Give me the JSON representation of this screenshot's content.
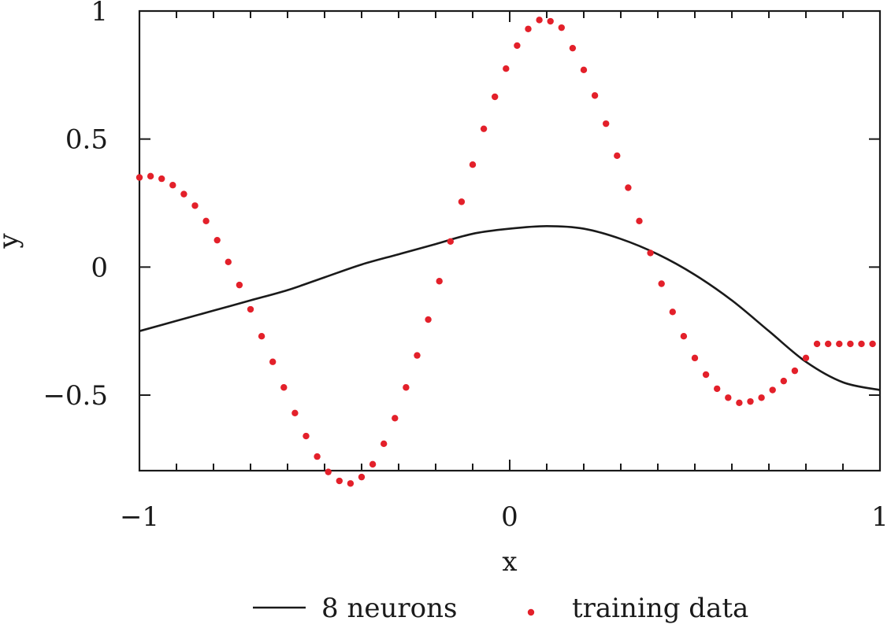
{
  "chart_data": {
    "type": "line",
    "xlabel": "x",
    "ylabel": "y",
    "xlim": [
      -1,
      1
    ],
    "ylim": [
      -0.9,
      1
    ],
    "xticks": [
      -1,
      0,
      1
    ],
    "xtick_labels": [
      "−1",
      "0",
      "1"
    ],
    "yticks": [
      -0.5,
      0,
      0.5,
      1
    ],
    "ytick_labels": [
      "−0.5",
      "0",
      "0.5",
      "1"
    ],
    "minor_xtick_step": 0.1,
    "grid": false,
    "legend_position": "bottom",
    "colors": {
      "model": "#1a1a1a",
      "training": "#e3202a"
    },
    "series": [
      {
        "name": "8 neurons",
        "kind": "line",
        "x": [
          -1.0,
          -0.9,
          -0.8,
          -0.7,
          -0.6,
          -0.5,
          -0.4,
          -0.3,
          -0.2,
          -0.1,
          0.0,
          0.1,
          0.2,
          0.3,
          0.4,
          0.5,
          0.6,
          0.7,
          0.8,
          0.9,
          1.0
        ],
        "y": [
          -0.25,
          -0.21,
          -0.17,
          -0.13,
          -0.09,
          -0.04,
          0.01,
          0.05,
          0.09,
          0.13,
          0.15,
          0.16,
          0.15,
          0.11,
          0.05,
          -0.03,
          -0.13,
          -0.25,
          -0.37,
          -0.45,
          -0.48
        ]
      },
      {
        "name": "training data",
        "kind": "scatter",
        "x": [
          -1.0,
          -0.97,
          -0.94,
          -0.91,
          -0.88,
          -0.85,
          -0.82,
          -0.79,
          -0.76,
          -0.73,
          -0.7,
          -0.67,
          -0.64,
          -0.61,
          -0.58,
          -0.55,
          -0.52,
          -0.49,
          -0.46,
          -0.43,
          -0.4,
          -0.37,
          -0.34,
          -0.31,
          -0.28,
          -0.25,
          -0.22,
          -0.19,
          -0.16,
          -0.13,
          -0.1,
          -0.07,
          -0.04,
          -0.01,
          0.02,
          0.05,
          0.08,
          0.11,
          0.14,
          0.17,
          0.2,
          0.23,
          0.26,
          0.29,
          0.32,
          0.35,
          0.38,
          0.41,
          0.44,
          0.47,
          0.5,
          0.53,
          0.56,
          0.59,
          0.62,
          0.65,
          0.68,
          0.71,
          0.74,
          0.77,
          0.8,
          0.83,
          0.86,
          0.89,
          0.92,
          0.95,
          0.98
        ],
        "y": [
          0.35,
          0.355,
          0.345,
          0.32,
          0.285,
          0.24,
          0.18,
          0.105,
          0.02,
          -0.07,
          -0.165,
          -0.27,
          -0.37,
          -0.47,
          -0.57,
          -0.66,
          -0.74,
          -0.8,
          -0.835,
          -0.845,
          -0.82,
          -0.77,
          -0.69,
          -0.59,
          -0.47,
          -0.345,
          -0.205,
          -0.055,
          0.1,
          0.255,
          0.4,
          0.54,
          0.665,
          0.775,
          0.865,
          0.93,
          0.965,
          0.96,
          0.935,
          0.855,
          0.77,
          0.67,
          0.56,
          0.435,
          0.31,
          0.18,
          0.055,
          -0.065,
          -0.175,
          -0.27,
          -0.355,
          -0.42,
          -0.475,
          -0.51,
          -0.53,
          -0.525,
          -0.51,
          -0.48,
          -0.445,
          -0.405,
          -0.355,
          -0.3,
          -0.3,
          -0.3,
          -0.3,
          -0.3,
          -0.3
        ]
      }
    ]
  }
}
